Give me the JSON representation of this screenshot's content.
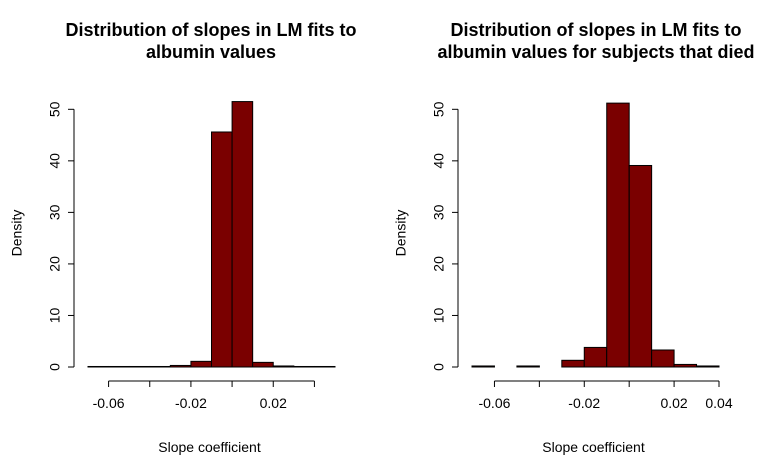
{
  "chart_data": [
    {
      "type": "bar",
      "title_lines": [
        "Distribution of slopes in LM fits to",
        "albumin values"
      ],
      "xlabel": "Slope coefficient",
      "ylabel": "Density",
      "xlim": [
        -0.07,
        0.05
      ],
      "ylim": [
        0,
        52
      ],
      "x_ticks": [
        -0.06,
        -0.02,
        0.02
      ],
      "x_tick_labels": [
        "-0.06",
        "-0.02",
        "0.02"
      ],
      "x_axis_range": [
        -0.06,
        0.04
      ],
      "y_ticks": [
        0,
        10,
        20,
        30,
        40,
        50
      ],
      "y_tick_labels": [
        "0",
        "10",
        "20",
        "30",
        "40",
        "50"
      ],
      "bin_edges": [
        -0.07,
        -0.06,
        -0.05,
        -0.04,
        -0.03,
        -0.02,
        -0.01,
        0.0,
        0.01,
        0.02,
        0.03,
        0.04,
        0.05
      ],
      "values": [
        0.1,
        0.1,
        0.1,
        0.1,
        0.3,
        1.1,
        45.6,
        51.5,
        0.9,
        0.2,
        0.1,
        0.1
      ],
      "grid": false,
      "bar_color": "#7a0000"
    },
    {
      "type": "bar",
      "title_lines": [
        "Distribution of slopes in LM fits to",
        "albumin values for subjects that died"
      ],
      "xlabel": "Slope coefficient",
      "ylabel": "Density",
      "xlim": [
        -0.07,
        0.04
      ],
      "ylim": [
        0,
        52
      ],
      "x_ticks": [
        -0.06,
        -0.02,
        0.02,
        0.04
      ],
      "x_tick_labels": [
        "-0.06",
        "-0.02",
        "0.02",
        "0.04"
      ],
      "x_axis_range": [
        -0.06,
        0.04
      ],
      "y_ticks": [
        0,
        10,
        20,
        30,
        40,
        50
      ],
      "y_tick_labels": [
        "0",
        "10",
        "20",
        "30",
        "40",
        "50"
      ],
      "bin_edges": [
        -0.07,
        -0.06,
        -0.05,
        -0.04,
        -0.03,
        -0.02,
        -0.01,
        0.0,
        0.01,
        0.02,
        0.03,
        0.04
      ],
      "values": [
        0.2,
        0.0,
        0.2,
        0.0,
        1.3,
        3.8,
        51.2,
        39.1,
        3.3,
        0.5,
        0.2
      ],
      "grid": false,
      "bar_color": "#7a0000"
    }
  ]
}
